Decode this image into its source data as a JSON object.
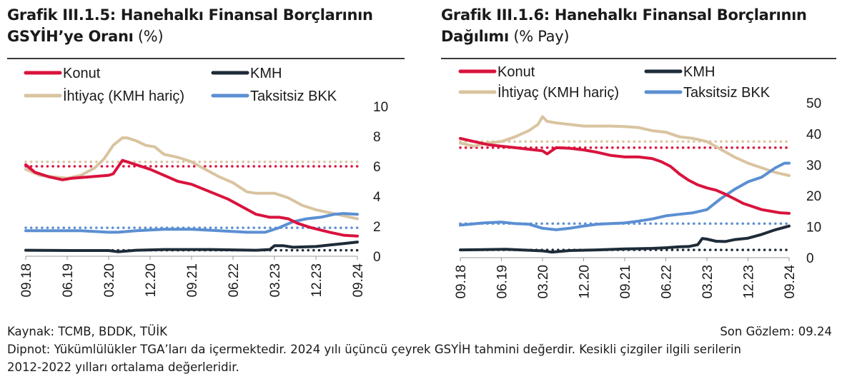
{
  "colors": {
    "konut": "#d9133d",
    "kmh": "#1e2b38",
    "ihtiyac": "#d9c4a0",
    "taksitsiz": "#5b8fd2",
    "axis": "#999999"
  },
  "footer": {
    "source": "Kaynak: TCMB, BDDK, TÜİK",
    "last_obs": "Son Gözlem: 09.24",
    "note_line1": "Dipnot: Yükümlülükler TGA’ları da içermektedir. 2024 yılı üçüncü çeyrek GSYİH tahmini değerdir. Kesikli çizgiler ilgili serilerin",
    "note_line2": "2012-2022 yılları ortalama değerleridir."
  },
  "chart_data": [
    {
      "type": "line",
      "title_bold_1": "Grafik III.1.5: Hanehalkı Finansal Borçlarının",
      "title_bold_2": "GSYİH’ye Oranı",
      "title_unit": "(%)",
      "ylim": [
        0,
        10
      ],
      "yticks": [
        "0",
        "2",
        "4",
        "6",
        "8",
        "10"
      ],
      "xlim": [
        0,
        72
      ],
      "xticks": [
        {
          "t": 0,
          "label": "09.18"
        },
        {
          "t": 9,
          "label": "06.19"
        },
        {
          "t": 18,
          "label": "03.20"
        },
        {
          "t": 27,
          "label": "12.20"
        },
        {
          "t": 36,
          "label": "09.21"
        },
        {
          "t": 45,
          "label": "06.22"
        },
        {
          "t": 54,
          "label": "03.23"
        },
        {
          "t": 63,
          "label": "12.23"
        },
        {
          "t": 72,
          "label": "09.24"
        }
      ],
      "series": [
        {
          "name": "Konut",
          "key": "konut",
          "avg": 6.0,
          "x": [
            0,
            2,
            5,
            8,
            10,
            14,
            18,
            19,
            21,
            22,
            24,
            27,
            30,
            33,
            36,
            40,
            44,
            47,
            50,
            53,
            55,
            57,
            59,
            62,
            66,
            69,
            72
          ],
          "y": [
            6.1,
            5.6,
            5.3,
            5.1,
            5.2,
            5.3,
            5.4,
            5.5,
            6.4,
            6.3,
            6.1,
            5.8,
            5.4,
            5.0,
            4.8,
            4.3,
            3.8,
            3.3,
            2.8,
            2.6,
            2.6,
            2.5,
            2.2,
            1.9,
            1.6,
            1.4,
            1.35
          ]
        },
        {
          "name": "KMH",
          "key": "kmh",
          "avg": 0.4,
          "x": [
            0,
            10,
            18,
            20,
            24,
            30,
            40,
            50,
            53,
            54,
            56,
            58,
            63,
            66,
            69,
            72
          ],
          "y": [
            0.4,
            0.38,
            0.38,
            0.3,
            0.4,
            0.45,
            0.45,
            0.4,
            0.45,
            0.7,
            0.7,
            0.6,
            0.65,
            0.75,
            0.85,
            0.95
          ]
        },
        {
          "name": "İhtiyaç (KMH hariç)",
          "key": "ihtiyac",
          "avg": 6.3,
          "x": [
            0,
            3,
            6,
            9,
            12,
            15,
            17,
            19,
            21,
            22,
            24,
            26,
            28,
            30,
            33,
            36,
            39,
            42,
            45,
            48,
            50,
            54,
            57,
            60,
            63,
            66,
            69,
            72
          ],
          "y": [
            5.8,
            5.4,
            5.3,
            5.2,
            5.4,
            5.9,
            6.5,
            7.4,
            7.9,
            7.9,
            7.7,
            7.4,
            7.3,
            6.8,
            6.6,
            6.3,
            5.8,
            5.3,
            4.9,
            4.3,
            4.2,
            4.2,
            3.9,
            3.4,
            3.1,
            2.9,
            2.7,
            2.5
          ]
        },
        {
          "name": "Taksitsiz BKK",
          "key": "taksitsiz",
          "avg": 1.9,
          "x": [
            0,
            6,
            12,
            18,
            20,
            24,
            30,
            36,
            42,
            48,
            52,
            55,
            58,
            61,
            64,
            67,
            69,
            72
          ],
          "y": [
            1.7,
            1.7,
            1.7,
            1.6,
            1.6,
            1.7,
            1.8,
            1.8,
            1.7,
            1.6,
            1.6,
            1.9,
            2.3,
            2.5,
            2.6,
            2.8,
            2.85,
            2.8
          ]
        }
      ]
    },
    {
      "type": "line",
      "title_bold_1": "Grafik III.1.6: Hanehalkı Finansal Borçlarının",
      "title_bold_2": "Dağılımı",
      "title_unit": "(% Pay)",
      "ylim": [
        0,
        50
      ],
      "yticks": [
        "0",
        "10",
        "20",
        "30",
        "40",
        "50"
      ],
      "xlim": [
        0,
        72
      ],
      "xticks": [
        {
          "t": 0,
          "label": "09.18"
        },
        {
          "t": 9,
          "label": "06.19"
        },
        {
          "t": 18,
          "label": "03.20"
        },
        {
          "t": 27,
          "label": "12.20"
        },
        {
          "t": 36,
          "label": "09.21"
        },
        {
          "t": 45,
          "label": "06.22"
        },
        {
          "t": 54,
          "label": "03.23"
        },
        {
          "t": 63,
          "label": "12.23"
        },
        {
          "t": 72,
          "label": "09.24"
        }
      ],
      "series": [
        {
          "name": "Konut",
          "key": "konut",
          "avg": 35.5,
          "x": [
            0,
            3,
            6,
            9,
            12,
            15,
            18,
            19,
            21,
            24,
            27,
            30,
            33,
            36,
            39,
            42,
            44,
            46,
            48,
            50,
            52,
            54,
            56,
            58,
            60,
            62,
            64,
            66,
            68,
            70,
            72
          ],
          "y": [
            38.5,
            37.5,
            36.5,
            36.0,
            35.5,
            35.0,
            34.5,
            33.5,
            35.5,
            35.3,
            34.8,
            34.0,
            33.0,
            32.5,
            32.5,
            32.0,
            31.0,
            29.5,
            27.0,
            25.0,
            23.5,
            22.5,
            21.8,
            20.5,
            19.0,
            17.5,
            16.5,
            15.5,
            15.0,
            14.5,
            14.3
          ]
        },
        {
          "name": "KMH",
          "key": "kmh",
          "avg": 2.5,
          "x": [
            0,
            5,
            10,
            15,
            18,
            20,
            24,
            30,
            36,
            42,
            45,
            48,
            50,
            52,
            53,
            54,
            56,
            58,
            60,
            63,
            66,
            69,
            72
          ],
          "y": [
            2.5,
            2.6,
            2.7,
            2.4,
            2.2,
            1.8,
            2.3,
            2.5,
            2.8,
            3.0,
            3.2,
            3.5,
            3.6,
            4.2,
            6.2,
            6.0,
            5.3,
            5.2,
            5.8,
            6.3,
            7.5,
            9.0,
            10.2
          ]
        },
        {
          "name": "İhtiyaç (KMH hariç)",
          "key": "ihtiyac",
          "avg": 37.5,
          "x": [
            0,
            3,
            6,
            9,
            12,
            15,
            17,
            18,
            19,
            21,
            24,
            27,
            30,
            33,
            36,
            39,
            42,
            45,
            48,
            51,
            54,
            57,
            60,
            63,
            66,
            69,
            72
          ],
          "y": [
            37.0,
            36.0,
            37.0,
            37.5,
            39.0,
            41.0,
            43.0,
            45.5,
            44.0,
            43.5,
            43.0,
            42.5,
            42.5,
            42.5,
            42.3,
            42.0,
            41.0,
            40.5,
            39.0,
            38.5,
            37.5,
            35.0,
            32.5,
            30.5,
            29.0,
            27.5,
            26.5
          ]
        },
        {
          "name": "Taksitsiz BKK",
          "key": "taksitsiz",
          "avg": 11.0,
          "x": [
            0,
            5,
            9,
            12,
            15,
            18,
            21,
            24,
            27,
            30,
            33,
            36,
            39,
            42,
            45,
            48,
            51,
            54,
            57,
            60,
            63,
            66,
            69,
            71,
            72
          ],
          "y": [
            10.5,
            11.2,
            11.5,
            11.0,
            10.8,
            9.5,
            9.0,
            9.5,
            10.2,
            10.8,
            11.0,
            11.2,
            11.8,
            12.5,
            13.5,
            14.0,
            14.5,
            15.5,
            19.0,
            22.0,
            24.5,
            26.0,
            29.0,
            30.5,
            30.5
          ]
        }
      ]
    }
  ]
}
